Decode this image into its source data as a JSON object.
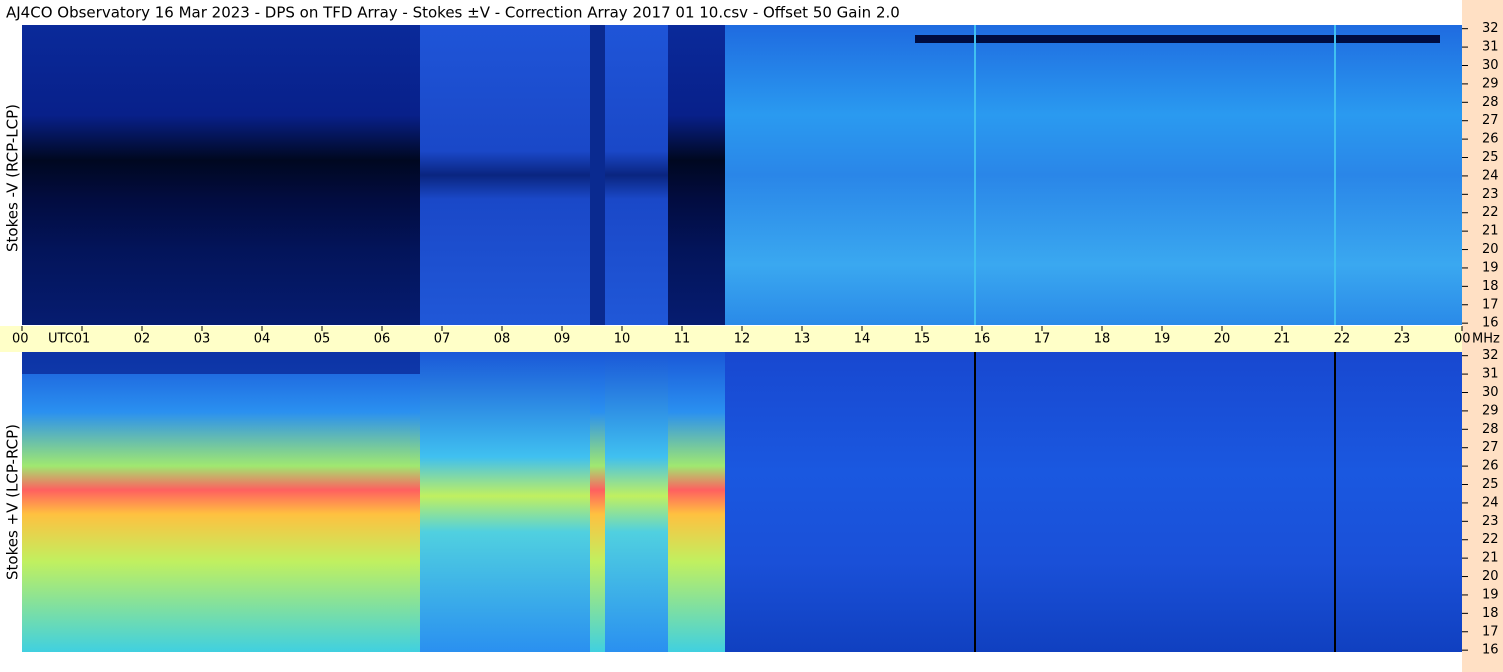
{
  "chart_data": {
    "type": "spectrogram",
    "title": "AJ4CO Observatory  16 Mar 2023  -  DPS on TFD Array  -  Stokes ±V  -  Correction Array 2017 01 10.csv  -  Offset 50  Gain 2.0",
    "panels": [
      {
        "label": "Stokes -V (RCP-LCP)"
      },
      {
        "label": "Stokes +V (LCP-RCP)"
      }
    ],
    "x_unit": "UTC",
    "y_unit": "MHz",
    "xlim": [
      0,
      24
    ],
    "xticks": [
      {
        "value": 0,
        "label": "00"
      },
      {
        "value": 1,
        "label": "01"
      },
      {
        "value": 2,
        "label": "02"
      },
      {
        "value": 3,
        "label": "03"
      },
      {
        "value": 4,
        "label": "04"
      },
      {
        "value": 5,
        "label": "05"
      },
      {
        "value": 6,
        "label": "06"
      },
      {
        "value": 7,
        "label": "07"
      },
      {
        "value": 8,
        "label": "08"
      },
      {
        "value": 9,
        "label": "09"
      },
      10,
      11,
      12,
      13,
      14,
      15,
      16,
      17,
      18,
      19,
      20,
      21,
      22,
      23,
      {
        "value": 24,
        "label": "00"
      }
    ],
    "ylim": [
      15.9,
      32.2
    ],
    "yticks": [
      16,
      17,
      18,
      19,
      20,
      21,
      22,
      23,
      24,
      25,
      26,
      27,
      28,
      29,
      30,
      31,
      32
    ]
  }
}
